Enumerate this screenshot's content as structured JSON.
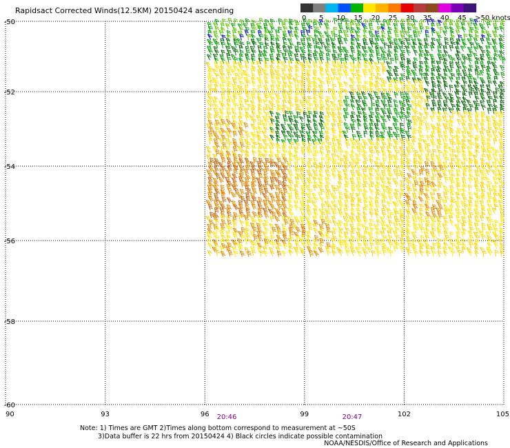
{
  "title": "Rapidsact Corrected Winds(12.5KM) 20150424 ascending",
  "colorbar": {
    "labels": [
      "0",
      "5",
      "10",
      "15",
      "20",
      "25",
      "30",
      "35",
      "40",
      "45",
      ">50 knots"
    ],
    "colors": [
      "#333333",
      "#7f7f7f",
      "#00b4f0",
      "#0050ff",
      "#00b400",
      "#ffe600",
      "#ffb400",
      "#ff7a00",
      "#e60000",
      "#b43c3c",
      "#8c4a1e",
      "#e000e0",
      "#7800b4",
      "#3c1478"
    ]
  },
  "map": {
    "lon_ticks": [
      "90",
      "93",
      "96",
      "99",
      "102",
      "105"
    ],
    "lat_ticks": [
      "-50",
      "-52",
      "-54",
      "-56",
      "-58",
      "-60"
    ],
    "time_labels": [
      "20:46",
      "20:47"
    ],
    "grid": "dotted",
    "swath": "wind barbs between 96E and 105E, -50 to -56.5",
    "regions": [
      {
        "desc": "northern band",
        "speed_knots": 17,
        "color": "#00a000"
      },
      {
        "desc": "scattered blue barbs near -50",
        "speed_knots": 12,
        "color": "#0000c8"
      },
      {
        "desc": "central yellow",
        "speed_knots": 22,
        "color": "#ffe600"
      },
      {
        "desc": "southwest orange",
        "speed_knots": 27,
        "color": "#e68a00"
      }
    ]
  },
  "notes": {
    "line1": "Note: 1) Times are GMT 2)Times along bottom correspond to measurement at ~50S",
    "line2": "3)Data buffer is 22 hrs from 20150424 4) Black circles indicate possible contamination",
    "credit": "NOAA/NESDIS/Office of Research and Applications"
  }
}
